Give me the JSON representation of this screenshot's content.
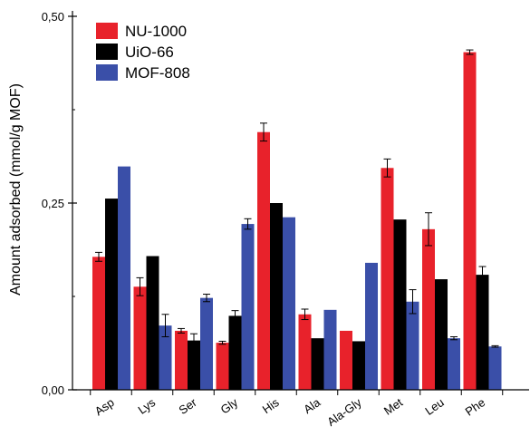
{
  "chart_data": {
    "type": "bar",
    "title": "",
    "xlabel": "",
    "ylabel": "Amount adsorbed (mmol/g MOF)",
    "ylim": [
      0,
      0.5
    ],
    "yticks": [
      "0,00",
      "0,25",
      "0,50"
    ],
    "grid": false,
    "legend_position": "top-left",
    "categories": [
      "Asp",
      "Lys",
      "Ser",
      "Gly",
      "His",
      "Ala",
      "Ala-Gly",
      "Met",
      "Leu",
      "Phe"
    ],
    "series": [
      {
        "name": "NU-1000",
        "color": "#e8222b",
        "values": [
          0.178,
          0.138,
          0.079,
          0.063,
          0.345,
          0.101,
          0.079,
          0.297,
          0.215,
          0.452
        ],
        "errors": [
          0.006,
          0.012,
          0.003,
          0.002,
          0.012,
          0.007,
          0.0,
          0.012,
          0.022,
          0.003
        ]
      },
      {
        "name": "UiO-66",
        "color": "#000000",
        "values": [
          0.256,
          0.179,
          0.066,
          0.099,
          0.25,
          0.069,
          0.065,
          0.228,
          0.148,
          0.154
        ],
        "errors": [
          0.0,
          0.0,
          0.009,
          0.007,
          0.0,
          0.0,
          0.0,
          0.0,
          0.0,
          0.011
        ]
      },
      {
        "name": "MOF-808",
        "color": "#3a4fa8",
        "values": [
          0.299,
          0.086,
          0.123,
          0.222,
          0.231,
          0.107,
          0.17,
          0.118,
          0.069,
          0.058
        ],
        "errors": [
          0.0,
          0.015,
          0.005,
          0.007,
          0.0,
          0.0,
          0.0,
          0.016,
          0.002,
          0.001
        ]
      }
    ]
  }
}
